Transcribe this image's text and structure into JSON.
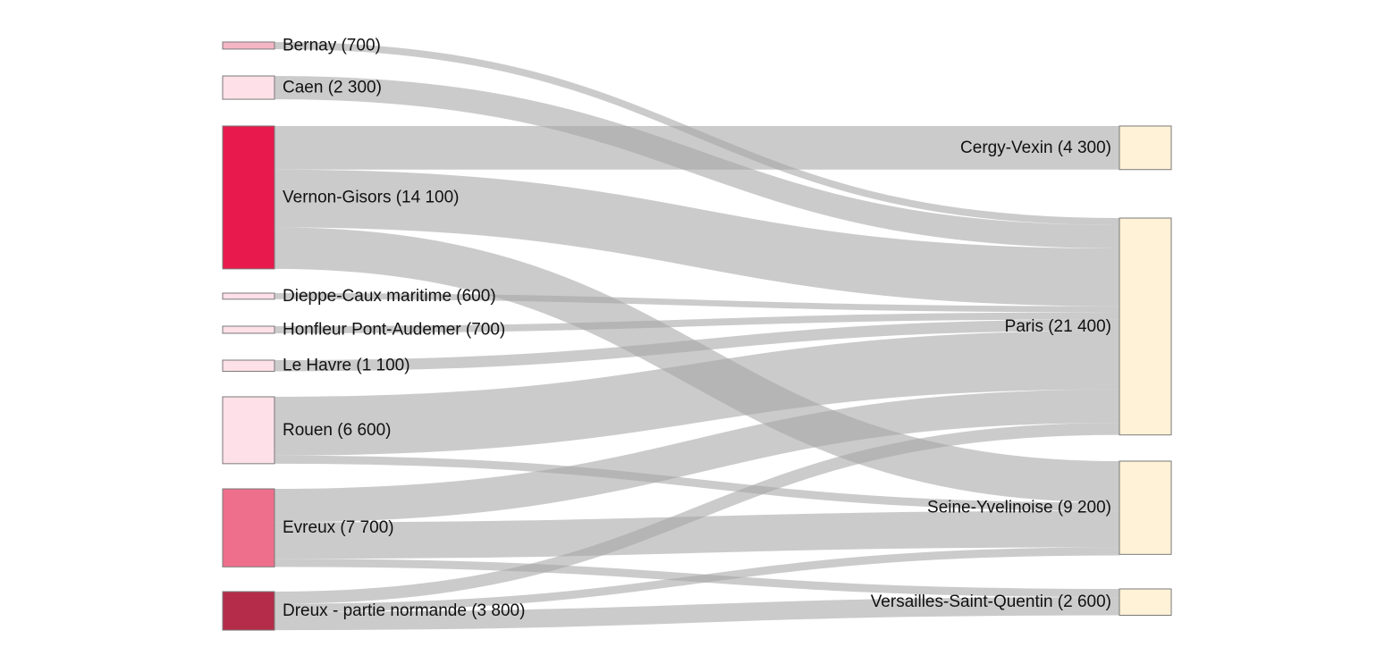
{
  "chart_data": {
    "type": "sankey",
    "colors": {
      "link": "#a6a6a6",
      "target_node": "#fff2d6"
    },
    "sources": [
      {
        "id": "bernay",
        "label": "Bernay (700)",
        "value": 700,
        "color": "#f4b6c4"
      },
      {
        "id": "caen",
        "label": "Caen (2 300)",
        "value": 2300,
        "color": "#fde0e8"
      },
      {
        "id": "vernon",
        "label": "Vernon-Gisors (14 100)",
        "value": 14100,
        "color": "#e8194c"
      },
      {
        "id": "dieppe",
        "label": "Dieppe-Caux maritime (600)",
        "value": 600,
        "color": "#fde0e8"
      },
      {
        "id": "honfleur",
        "label": "Honfleur Pont-Audemer (700)",
        "value": 700,
        "color": "#fde0e8"
      },
      {
        "id": "lehavre",
        "label": "Le Havre (1 100)",
        "value": 1100,
        "color": "#fde0e8"
      },
      {
        "id": "rouen",
        "label": "Rouen (6 600)",
        "value": 6600,
        "color": "#fde0e8"
      },
      {
        "id": "evreux",
        "label": "Evreux (7 700)",
        "value": 7700,
        "color": "#ee6f8b"
      },
      {
        "id": "dreux",
        "label": "Dreux - partie normande (3 800)",
        "value": 3800,
        "color": "#b52c4a"
      }
    ],
    "targets": [
      {
        "id": "cergy",
        "label": "Cergy-Vexin (4 300)",
        "value": 4300
      },
      {
        "id": "paris",
        "label": "Paris (21 400)",
        "value": 21400
      },
      {
        "id": "seine",
        "label": "Seine-Yvelinoise (9 200)",
        "value": 9200
      },
      {
        "id": "versailles",
        "label": "Versailles-Saint-Quentin (2 600)",
        "value": 2600
      }
    ],
    "links": [
      {
        "source": "bernay",
        "target": "paris",
        "value": 700
      },
      {
        "source": "caen",
        "target": "paris",
        "value": 2300
      },
      {
        "source": "vernon",
        "target": "cergy",
        "value": 4300
      },
      {
        "source": "vernon",
        "target": "paris",
        "value": 5700
      },
      {
        "source": "vernon",
        "target": "seine",
        "value": 4100
      },
      {
        "source": "dieppe",
        "target": "paris",
        "value": 600
      },
      {
        "source": "honfleur",
        "target": "paris",
        "value": 700
      },
      {
        "source": "lehavre",
        "target": "paris",
        "value": 1100
      },
      {
        "source": "rouen",
        "target": "paris",
        "value": 5800
      },
      {
        "source": "rouen",
        "target": "seine",
        "value": 800
      },
      {
        "source": "evreux",
        "target": "paris",
        "value": 3300
      },
      {
        "source": "evreux",
        "target": "seine",
        "value": 3600
      },
      {
        "source": "evreux",
        "target": "versailles",
        "value": 800
      },
      {
        "source": "dreux",
        "target": "paris",
        "value": 1200
      },
      {
        "source": "dreux",
        "target": "seine",
        "value": 800
      },
      {
        "source": "dreux",
        "target": "versailles",
        "value": 1800
      }
    ]
  }
}
